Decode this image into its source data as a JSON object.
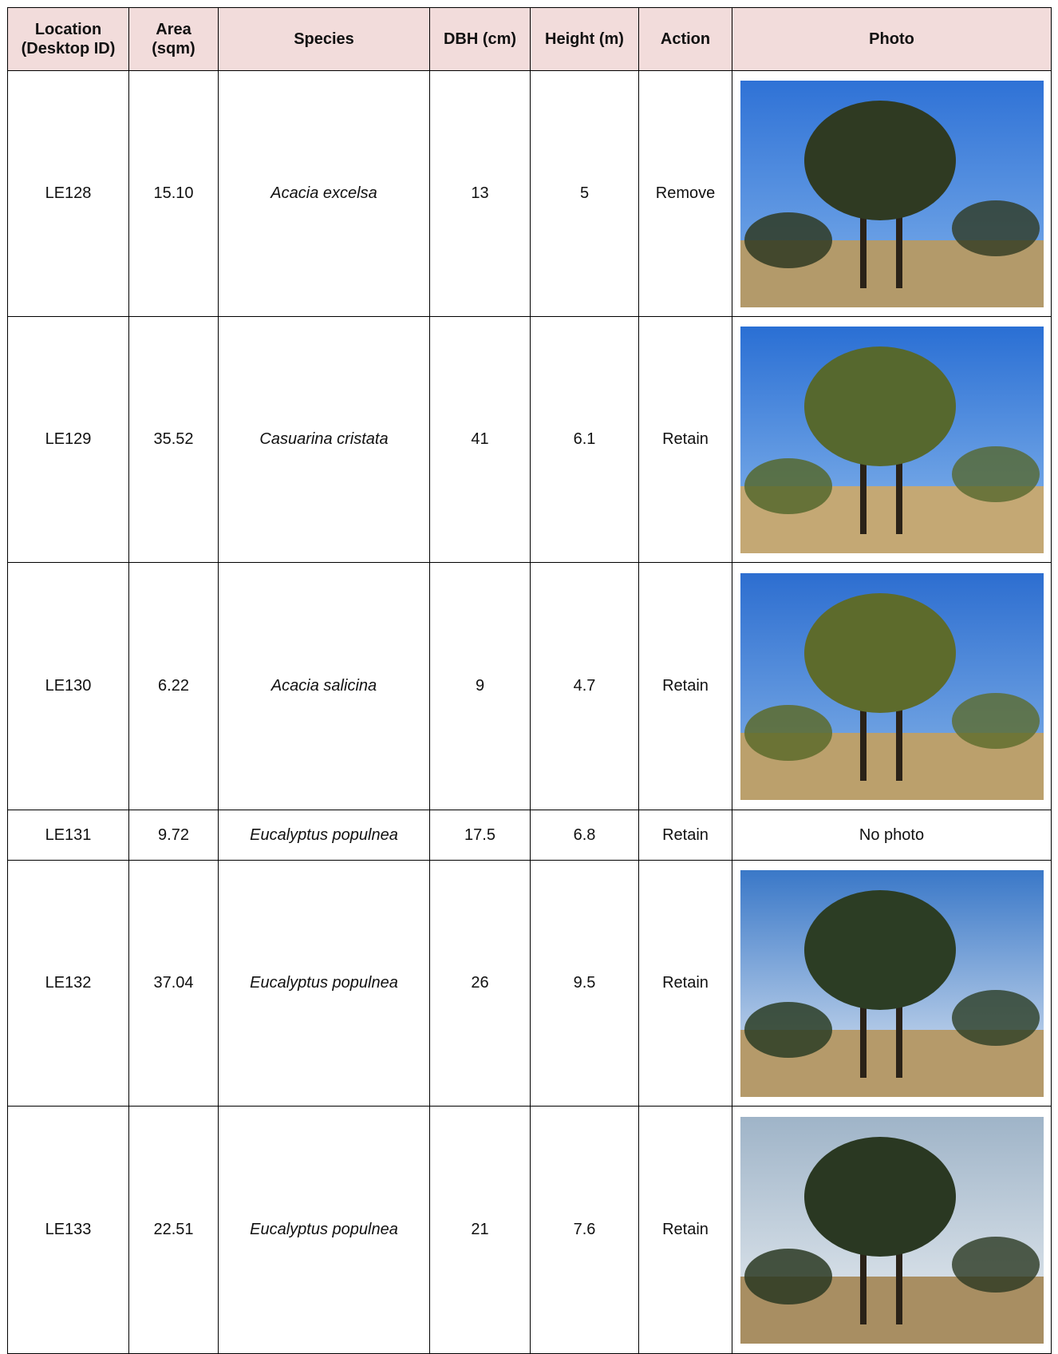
{
  "table": {
    "header": [
      "Location (Desktop ID)",
      "Area (sqm)",
      "Species",
      "DBH (cm)",
      "Height (m)",
      "Action",
      "Photo"
    ],
    "rows": [
      {
        "cells": [
          "LE128",
          "15.10",
          "Acacia excelsa",
          "13",
          "5",
          "Remove"
        ]
      },
      {
        "cells": [
          "LE129",
          "35.52",
          "Casuarina cristata",
          "41",
          "6.1",
          "Retain"
        ]
      },
      {
        "cells": [
          "LE130",
          "6.22",
          "Acacia salicina",
          "9",
          "4.7",
          "Retain"
        ]
      },
      {
        "cells": [
          "LE131",
          "9.72",
          "Eucalyptus populnea",
          "17.5",
          "6.8",
          "Retain"
        ],
        "photo": "No photo"
      },
      {
        "cells": [
          "LE132",
          "37.04",
          "Eucalyptus populnea",
          "26",
          "9.5",
          "Retain"
        ]
      },
      {
        "cells": [
          "LE133",
          "22.51",
          "Eucalyptus populnea",
          "21",
          "7.6",
          "Retain"
        ]
      }
    ]
  }
}
